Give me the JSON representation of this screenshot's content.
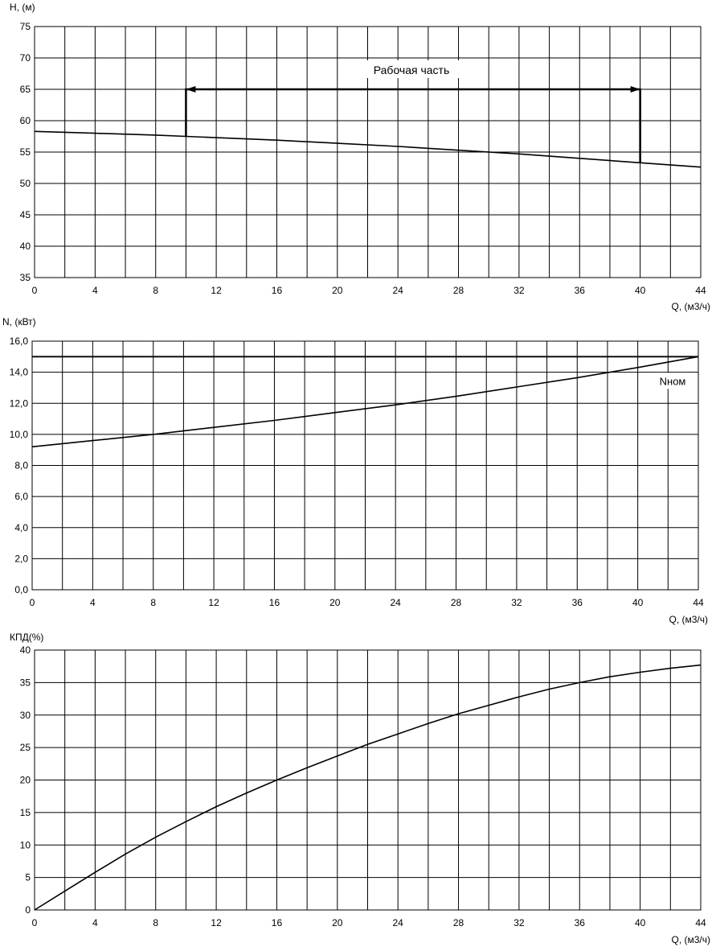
{
  "chart_data": [
    {
      "type": "line",
      "ylabel": "H, (м)",
      "xlabel": "Q, (м3/ч)",
      "xlim": [
        0,
        44
      ],
      "ylim": [
        35,
        75
      ],
      "x_ticks": [
        "0",
        "4",
        "8",
        "12",
        "16",
        "20",
        "24",
        "28",
        "32",
        "36",
        "40",
        "44"
      ],
      "y_ticks": [
        "35",
        "40",
        "45",
        "50",
        "55",
        "60",
        "65",
        "70",
        "75"
      ],
      "grid": true,
      "series": [
        {
          "x": [
            0,
            4,
            8,
            10,
            12,
            16,
            20,
            24,
            28,
            32,
            36,
            40,
            44
          ],
          "y": [
            58.3,
            58.0,
            57.7,
            57.5,
            57.3,
            56.9,
            56.4,
            55.9,
            55.3,
            54.7,
            54.0,
            53.3,
            52.6
          ]
        }
      ],
      "annotation": {
        "text": "Рабочая часть",
        "x_from": 10,
        "x_to": 40,
        "y": 65
      }
    },
    {
      "type": "line",
      "ylabel": "N, (кВт)",
      "xlabel": "Q, (м3/ч)",
      "xlim": [
        0,
        44
      ],
      "ylim": [
        0,
        16
      ],
      "x_ticks": [
        "0",
        "4",
        "8",
        "12",
        "16",
        "20",
        "24",
        "28",
        "32",
        "36",
        "40",
        "44"
      ],
      "y_ticks": [
        "0,0",
        "2,0",
        "4,0",
        "6,0",
        "8,0",
        "10,0",
        "12,0",
        "14,0",
        "16,0"
      ],
      "grid": true,
      "series": [
        {
          "x": [
            0,
            4,
            8,
            12,
            16,
            20,
            24,
            28,
            32,
            36,
            40,
            44
          ],
          "y": [
            9.2,
            9.6,
            10.0,
            10.45,
            10.9,
            11.4,
            11.9,
            12.45,
            13.05,
            13.65,
            14.3,
            15.0
          ]
        }
      ],
      "reference_line": {
        "label": "Nном",
        "y": 15.0
      }
    },
    {
      "type": "line",
      "ylabel": "КПД(%)",
      "xlabel": "Q, (м3/ч)",
      "xlim": [
        0,
        44
      ],
      "ylim": [
        0,
        40
      ],
      "x_ticks": [
        "0",
        "4",
        "8",
        "12",
        "16",
        "20",
        "24",
        "28",
        "32",
        "36",
        "40",
        "44"
      ],
      "y_ticks": [
        "0",
        "5",
        "10",
        "15",
        "20",
        "25",
        "30",
        "35",
        "40"
      ],
      "grid": true,
      "series": [
        {
          "x": [
            0,
            2,
            4,
            6,
            8,
            10,
            12,
            14,
            16,
            18,
            20,
            22,
            24,
            26,
            28,
            30,
            32,
            34,
            36,
            38,
            40,
            42,
            44
          ],
          "y": [
            0,
            2.9,
            5.8,
            8.6,
            11.2,
            13.6,
            15.9,
            18.0,
            20.0,
            21.9,
            23.7,
            25.5,
            27.1,
            28.7,
            30.2,
            31.5,
            32.8,
            34.0,
            35.0,
            35.9,
            36.6,
            37.2,
            37.7
          ]
        }
      ]
    }
  ]
}
